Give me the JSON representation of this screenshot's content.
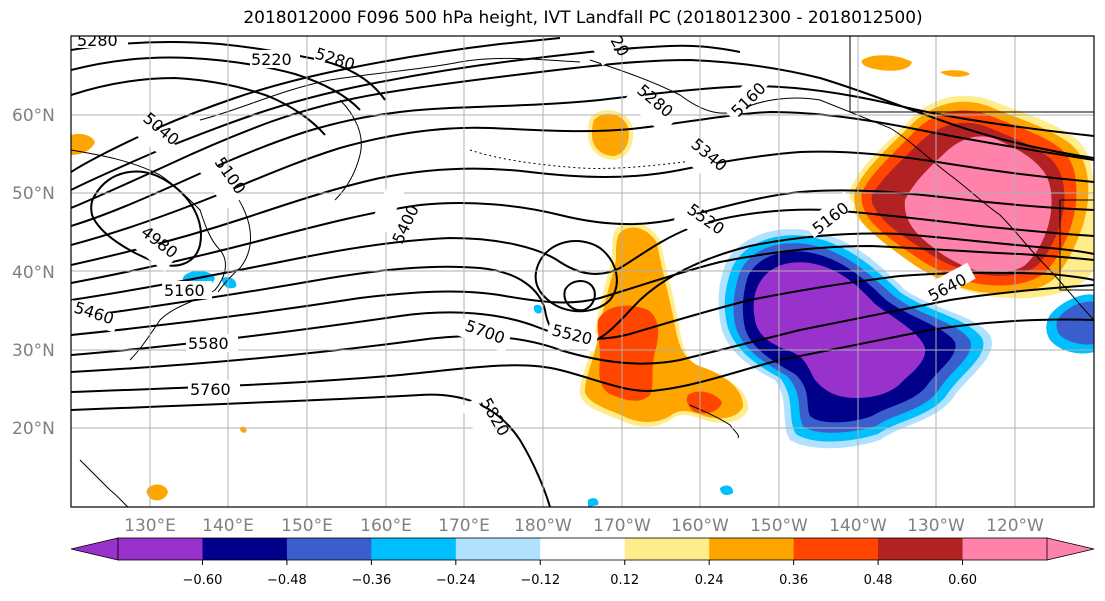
{
  "title": "2018012000 F096 500 hPa height, IVT Landfall PC (2018012300 - 2018012500)",
  "map": {
    "lat_labels": [
      "60°N",
      "50°N",
      "40°N",
      "30°N",
      "20°N"
    ],
    "lon_labels": [
      "130°E",
      "140°E",
      "150°E",
      "160°E",
      "170°E",
      "180°W",
      "170°W",
      "160°W",
      "150°W",
      "140°W",
      "130°W",
      "120°W"
    ],
    "contour_labels": [
      "5280",
      "5220",
      "5280",
      "5040",
      "5100",
      "4980",
      "5160",
      "5460",
      "5580",
      "5760",
      "5400",
      "5700",
      "5520",
      "5820",
      "5280",
      "5340",
      "5160",
      "5520",
      "5160",
      "5640",
      "20"
    ],
    "line_color": "#000000",
    "grid_color": "#b0b0b0"
  },
  "colorbar": {
    "colors": [
      "#9932cc",
      "#00008b",
      "#3a5fcd",
      "#00bfff",
      "#b0e2ff",
      "#ffffff",
      "#ffec8b",
      "#ffa500",
      "#ff4500",
      "#b22222",
      "#ff82ab"
    ],
    "ticks": [
      "−0.60",
      "−0.48",
      "−0.36",
      "−0.24",
      "−0.12",
      "0.12",
      "0.24",
      "0.36",
      "0.48",
      "0.60"
    ]
  }
}
